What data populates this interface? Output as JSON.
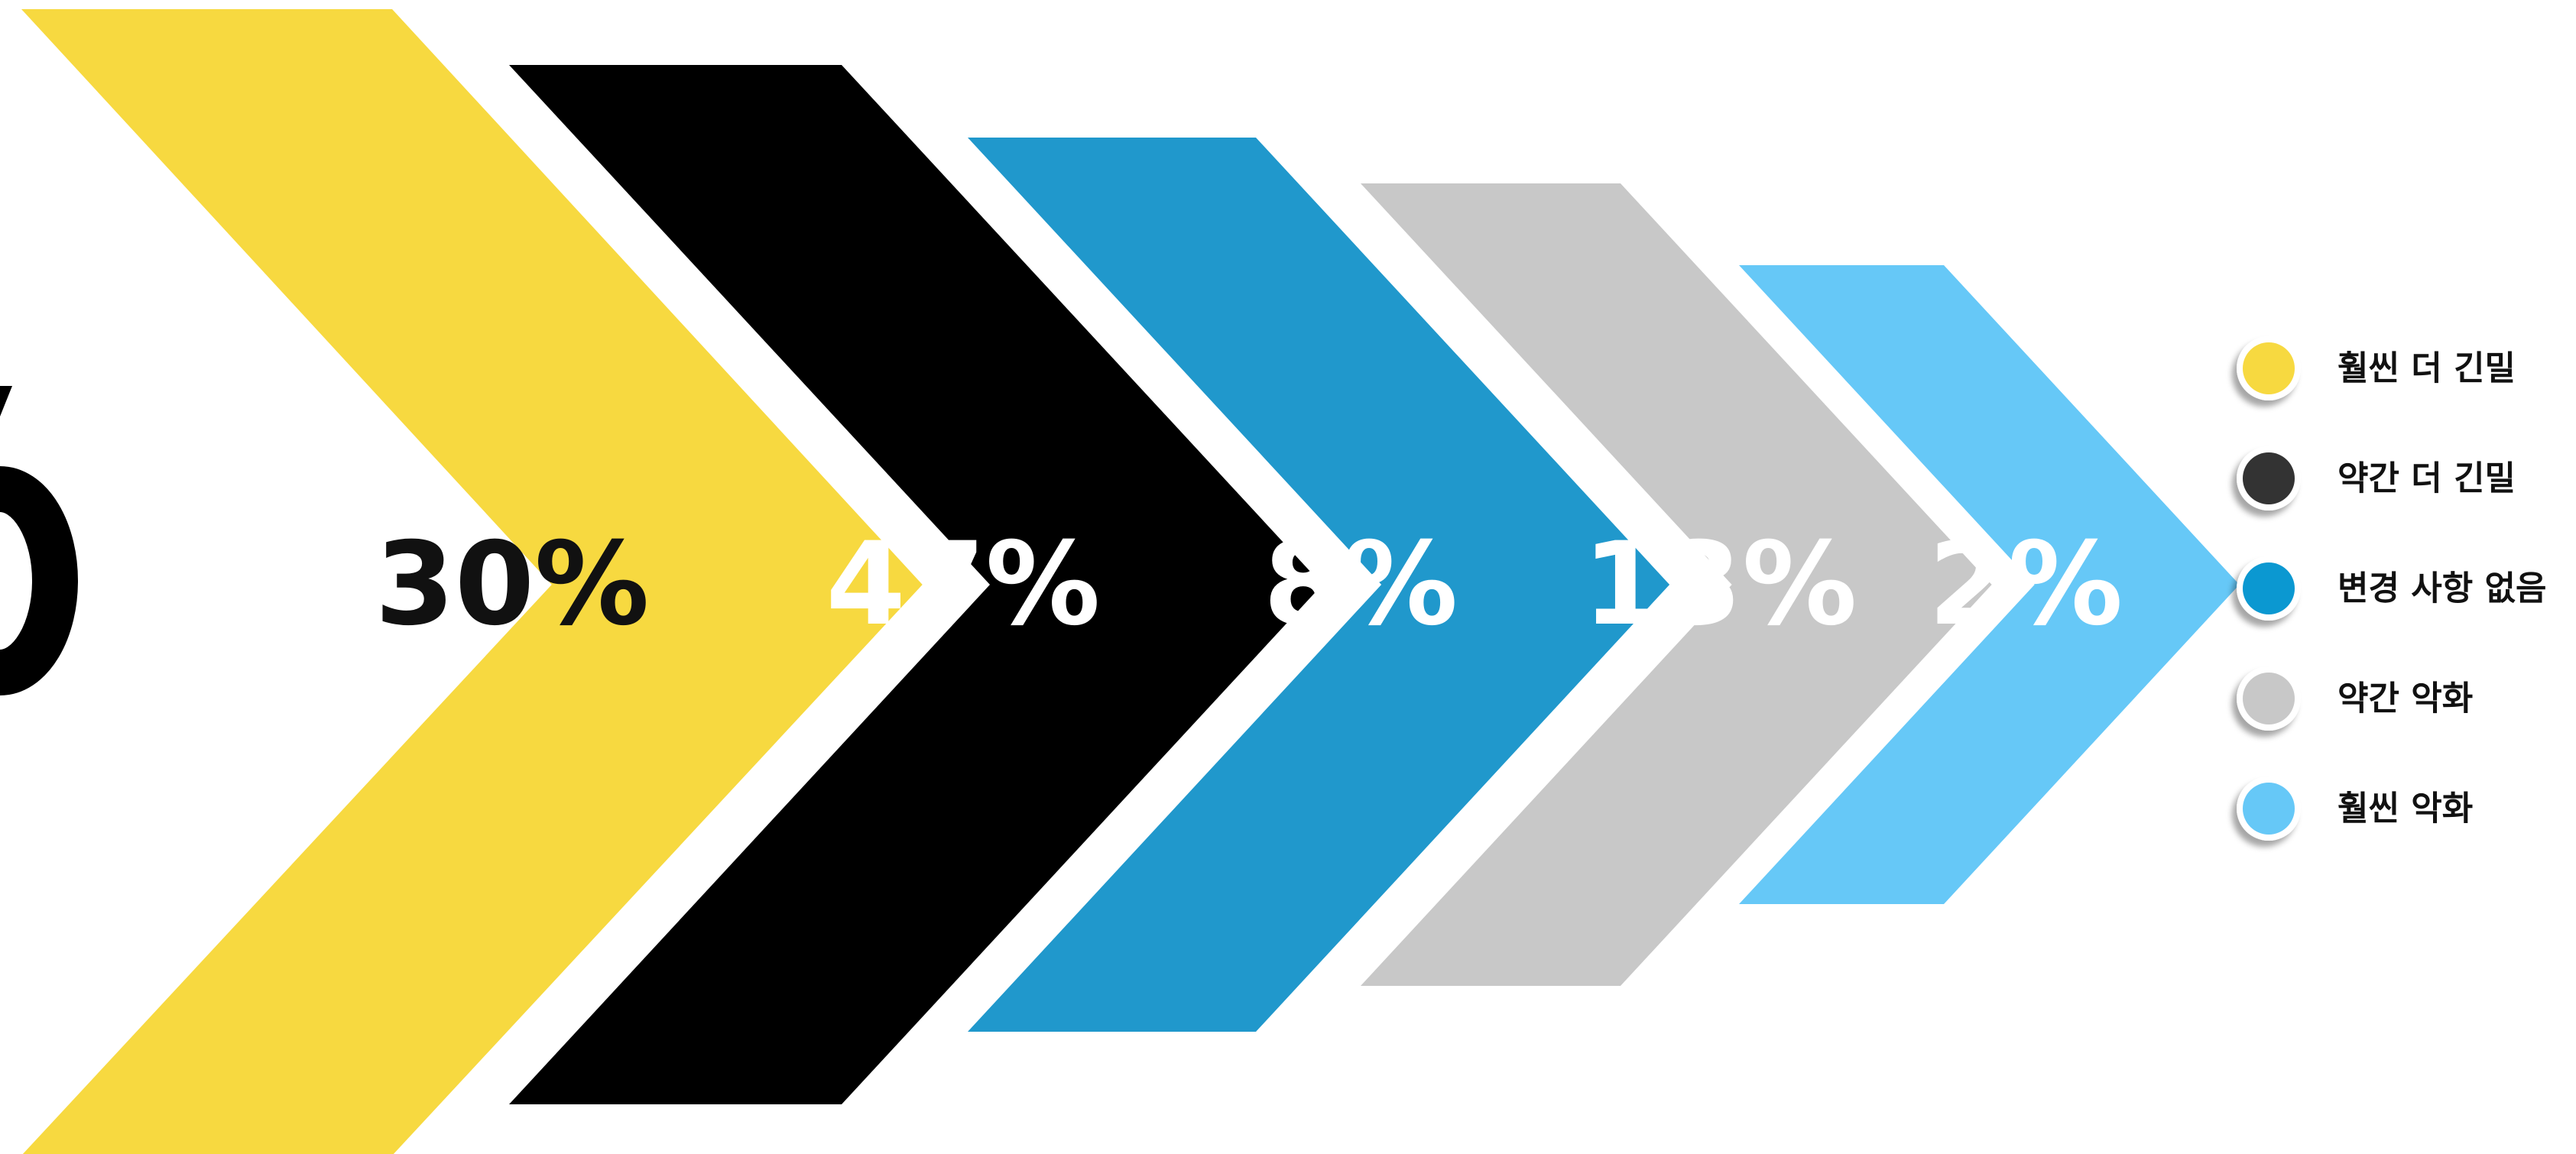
{
  "chart_data": {
    "type": "chevron-percentage",
    "title": "",
    "categories": [
      "훨씬 더 긴밀",
      "약간 더 긴밀",
      "변경 사항 없음",
      "약간 악화",
      "훨씬 악화"
    ],
    "values": [
      30,
      47,
      8,
      13,
      2
    ],
    "value_labels": [
      "30%",
      "47%",
      "8%",
      "13%",
      "2%"
    ],
    "colors": [
      "#F7D940",
      "#000000",
      "#2098CC",
      "#C8C8C8",
      "#66C8F7"
    ],
    "label_colors": [
      "#111111",
      "#FFFFFF",
      "#FFFFFF",
      "#FFFFFF",
      "#FFFFFF"
    ],
    "legend": {
      "placement": "right",
      "dot_colors": [
        "#F7D940",
        "#333333",
        "#0B98D1",
        "#C8C8C8",
        "#66C8F7"
      ]
    }
  }
}
